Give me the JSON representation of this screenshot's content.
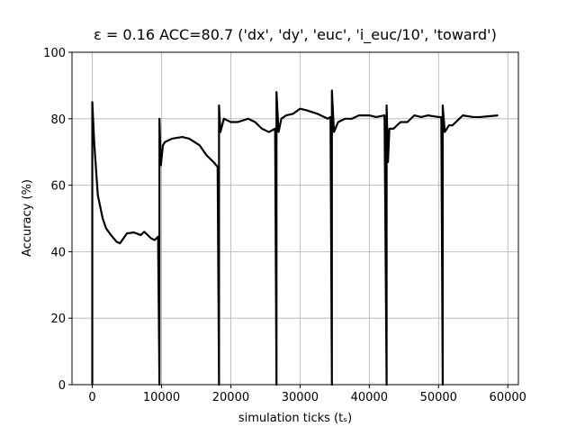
{
  "chart_data": {
    "type": "line",
    "title": "ε = 0.16 ACC=80.7 ('dx', 'dy', 'euc', 'i_euc/10', 'toward')",
    "xlabel": "simulation ticks (tₛ)",
    "ylabel": "Accuracy (%)",
    "xlim": [
      -2930,
      61530
    ],
    "ylim": [
      0,
      100
    ],
    "xticks": [
      0,
      10000,
      20000,
      30000,
      40000,
      50000,
      60000
    ],
    "yticks": [
      0,
      20,
      40,
      60,
      80,
      100
    ],
    "grid": true,
    "series": [
      {
        "color": "#000000",
        "x": [
          0,
          0,
          300,
          800,
          1500,
          2000,
          2700,
          3500,
          4000,
          4500,
          5000,
          6000,
          7000,
          7500,
          8500,
          9000,
          9500,
          9700,
          9700,
          9900,
          10200,
          10500,
          11500,
          13000,
          14000,
          15500,
          16500,
          17500,
          18100,
          18300,
          18300,
          18500,
          19000,
          20000,
          21000,
          22500,
          23500,
          24500,
          25500,
          26400,
          26600,
          26600,
          26900,
          27300,
          28000,
          29000,
          30000,
          31000,
          32500,
          34000,
          34400,
          34600,
          34600,
          34900,
          35500,
          36500,
          37500,
          38500,
          40000,
          41000,
          42200,
          42500,
          42500,
          42700,
          42900,
          43500,
          44500,
          45500,
          46500,
          47500,
          48500,
          50000,
          50400,
          50600,
          50600,
          50900,
          51500,
          52000,
          53500,
          55000,
          56000,
          57500,
          58600
        ],
        "values": [
          0,
          85,
          72,
          57,
          50,
          47,
          45,
          43,
          42.5,
          44,
          45.5,
          45.8,
          45,
          46,
          44,
          43.5,
          44.5,
          0,
          80,
          66,
          72,
          73,
          74,
          74.5,
          74,
          72,
          69,
          67,
          65.5,
          0,
          84,
          76,
          80,
          79,
          79,
          80,
          79,
          77,
          76,
          77,
          0,
          88,
          76,
          80,
          81,
          81.5,
          83,
          82.5,
          81.5,
          80,
          80.5,
          0,
          88.5,
          76,
          79,
          80,
          80,
          81,
          81,
          80.5,
          81,
          0,
          84,
          67,
          77,
          77,
          79,
          79,
          81,
          80.5,
          81,
          80.5,
          80.5,
          0,
          84,
          76,
          78,
          78,
          81,
          80.5,
          80.5,
          80.8,
          81
        ]
      }
    ]
  }
}
